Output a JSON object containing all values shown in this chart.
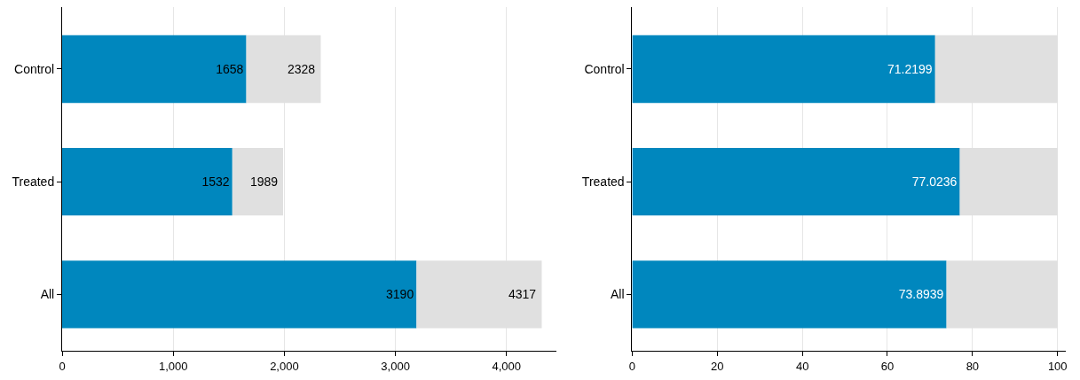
{
  "chart_data": [
    {
      "type": "bar",
      "orientation": "horizontal",
      "stacked": true,
      "categories": [
        "Control",
        "Treated",
        "All"
      ],
      "series": [
        {
          "color": "#0087be",
          "values": [
            1658,
            1532,
            3190
          ],
          "value_labels": [
            "1658",
            "1532",
            "3190"
          ]
        },
        {
          "color": "#e0e0e0",
          "values": [
            670,
            457,
            1127
          ]
        }
      ],
      "totals": [
        "2328",
        "1989",
        "4317"
      ],
      "xlim": [
        0,
        4450
      ],
      "xticks": [
        0,
        {
          "value": 1000,
          "label": "1,000"
        },
        {
          "value": 2000,
          "label": "2,000"
        },
        {
          "value": 3000,
          "label": "3,000"
        },
        {
          "value": 4000,
          "label": "4,000"
        }
      ],
      "grid": "x"
    },
    {
      "type": "bar",
      "orientation": "horizontal",
      "stacked": true,
      "categories": [
        "Control",
        "Treated",
        "All"
      ],
      "series": [
        {
          "color": "#0087be",
          "values": [
            71.2199,
            77.0236,
            73.8939
          ],
          "value_labels": [
            "71.2199",
            "77.0236",
            "73.8939"
          ]
        },
        {
          "color": "#e0e0e0",
          "values": [
            28.7801,
            22.9764,
            26.1061
          ]
        }
      ],
      "xlim": [
        0,
        102
      ],
      "xticks": [
        0,
        20,
        40,
        60,
        80,
        100
      ],
      "grid": "x"
    }
  ]
}
